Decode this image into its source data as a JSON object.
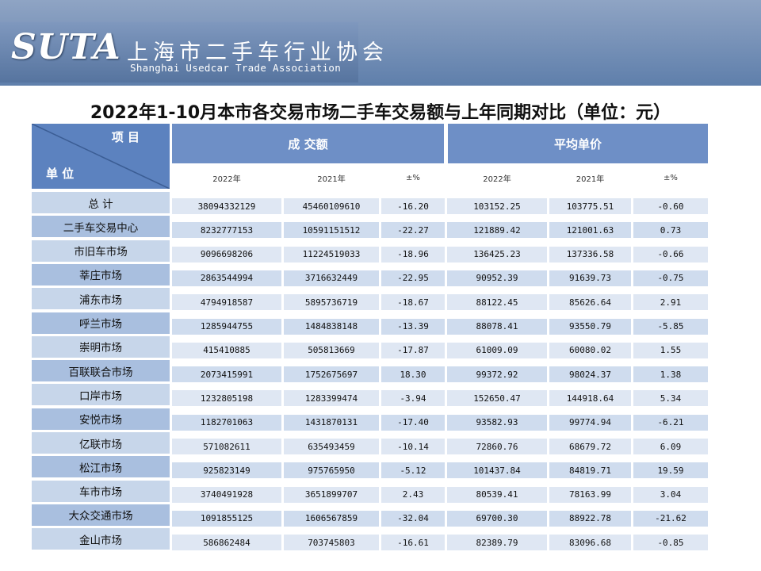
{
  "header": {
    "logo_text": "SUTA",
    "org_name_cn": "上海市二手车行业协会",
    "org_name_en": "Shanghai Usedcar Trade Association",
    "banner_color": "#6a87b3"
  },
  "title": "2022年1-10月本市各交易市场二手车交易额与上年同期对比（单位：元）",
  "table": {
    "corner_top": "项 目",
    "corner_bottom": "单 位",
    "group_amount": "成 交额",
    "group_price": "平均单价",
    "sub_headers": [
      "2022年",
      "2021年",
      "±%",
      "2022年",
      "2021年",
      "±%"
    ],
    "rows": [
      {
        "name": "总  计",
        "amount_2022": "38094332129",
        "amount_2021": "45460109610",
        "amount_pct": "-16.20",
        "price_2022": "103152.25",
        "price_2021": "103775.51",
        "price_pct": "-0.60"
      },
      {
        "name": "二手车交易中心",
        "amount_2022": "8232777153",
        "amount_2021": "10591151512",
        "amount_pct": "-22.27",
        "price_2022": "121889.42",
        "price_2021": "121001.63",
        "price_pct": "0.73"
      },
      {
        "name": "市旧车市场",
        "amount_2022": "9096698206",
        "amount_2021": "11224519033",
        "amount_pct": "-18.96",
        "price_2022": "136425.23",
        "price_2021": "137336.58",
        "price_pct": "-0.66"
      },
      {
        "name": "莘庄市场",
        "amount_2022": "2863544994",
        "amount_2021": "3716632449",
        "amount_pct": "-22.95",
        "price_2022": "90952.39",
        "price_2021": "91639.73",
        "price_pct": "-0.75"
      },
      {
        "name": "浦东市场",
        "amount_2022": "4794918587",
        "amount_2021": "5895736719",
        "amount_pct": "-18.67",
        "price_2022": "88122.45",
        "price_2021": "85626.64",
        "price_pct": "2.91"
      },
      {
        "name": "呼兰市场",
        "amount_2022": "1285944755",
        "amount_2021": "1484838148",
        "amount_pct": "-13.39",
        "price_2022": "88078.41",
        "price_2021": "93550.79",
        "price_pct": "-5.85"
      },
      {
        "name": "崇明市场",
        "amount_2022": "415410885",
        "amount_2021": "505813669",
        "amount_pct": "-17.87",
        "price_2022": "61009.09",
        "price_2021": "60080.02",
        "price_pct": "1.55"
      },
      {
        "name": "百联联合市场",
        "amount_2022": "2073415991",
        "amount_2021": "1752675697",
        "amount_pct": "18.30",
        "price_2022": "99372.92",
        "price_2021": "98024.37",
        "price_pct": "1.38"
      },
      {
        "name": "口岸市场",
        "amount_2022": "1232805198",
        "amount_2021": "1283399474",
        "amount_pct": "-3.94",
        "price_2022": "152650.47",
        "price_2021": "144918.64",
        "price_pct": "5.34"
      },
      {
        "name": "安悦市场",
        "amount_2022": "1182701063",
        "amount_2021": "1431870131",
        "amount_pct": "-17.40",
        "price_2022": "93582.93",
        "price_2021": "99774.94",
        "price_pct": "-6.21"
      },
      {
        "name": "亿联市场",
        "amount_2022": "571082611",
        "amount_2021": "635493459",
        "amount_pct": "-10.14",
        "price_2022": "72860.76",
        "price_2021": "68679.72",
        "price_pct": "6.09"
      },
      {
        "name": "松江市场",
        "amount_2022": "925823149",
        "amount_2021": "975765950",
        "amount_pct": "-5.12",
        "price_2022": "101437.84",
        "price_2021": "84819.71",
        "price_pct": "19.59"
      },
      {
        "name": "车市市场",
        "amount_2022": "3740491928",
        "amount_2021": "3651899707",
        "amount_pct": "2.43",
        "price_2022": "80539.41",
        "price_2021": "78163.99",
        "price_pct": "3.04"
      },
      {
        "name": "大众交通市场",
        "amount_2022": "1091855125",
        "amount_2021": "1606567859",
        "amount_pct": "-32.04",
        "price_2022": "69700.30",
        "price_2021": "88922.78",
        "price_pct": "-21.62"
      },
      {
        "name": "金山市场",
        "amount_2022": "586862484",
        "amount_2021": "703745803",
        "amount_pct": "-16.61",
        "price_2022": "82389.79",
        "price_2021": "83096.68",
        "price_pct": "-0.85"
      }
    ]
  }
}
